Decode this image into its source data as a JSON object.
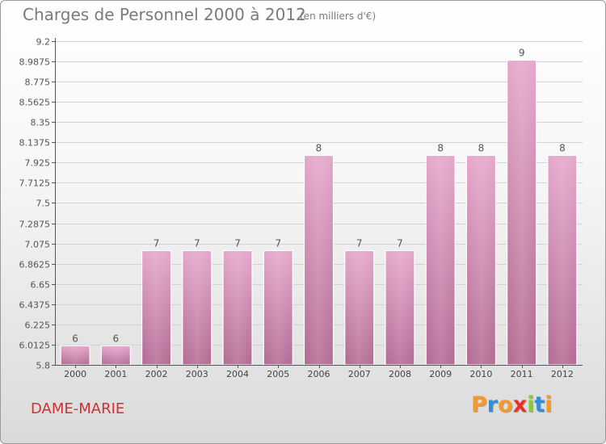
{
  "header": {
    "title": "Charges de Personnel 2000 à 2012",
    "subtitle": "(en milliers d'€)"
  },
  "footer": {
    "place": "DAME-MARIE",
    "logo": "Proxiti"
  },
  "colors": {
    "bar_light": "#e5a8cc",
    "bar_dark": "#b36c94",
    "place_text": "#cc3333",
    "logo_letters": [
      "#f29a2e",
      "#2f8fd8",
      "#f29a2e",
      "#e8302a",
      "#8cc63f",
      "#2f8fd8",
      "#f29a2e"
    ]
  },
  "chart_data": {
    "type": "bar",
    "categories": [
      "2000",
      "2001",
      "2002",
      "2003",
      "2004",
      "2005",
      "2006",
      "2007",
      "2008",
      "2009",
      "2010",
      "2011",
      "2012"
    ],
    "values": [
      6,
      6,
      7,
      7,
      7,
      7,
      8,
      7,
      7,
      8,
      8,
      9,
      8
    ],
    "data_labels": [
      "6",
      "6",
      "7",
      "7",
      "7",
      "7",
      "8",
      "7",
      "7",
      "8",
      "8",
      "9",
      "8"
    ],
    "title": "Charges de Personnel 2000 à 2012",
    "ylim": [
      5.8,
      9.2
    ],
    "y_ticks": [
      "9.2",
      "8.9875",
      "8.775",
      "8.5625",
      "8.35",
      "8.1375",
      "7.925",
      "7.7125",
      "7.5",
      "7.2875",
      "7.075",
      "6.8625",
      "6.65",
      "6.4375",
      "6.225",
      "6.0125",
      "5.8"
    ],
    "grid": true,
    "legend": "none"
  }
}
